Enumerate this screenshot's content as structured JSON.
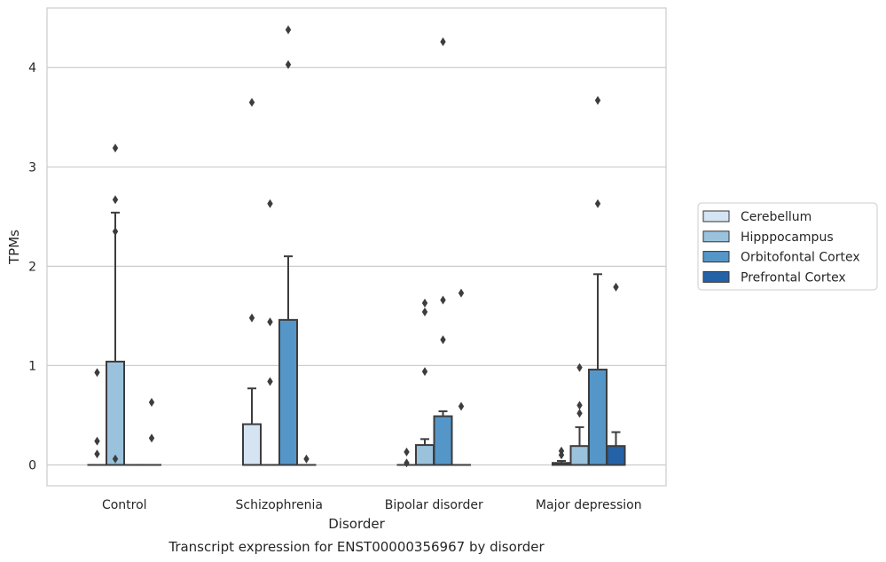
{
  "chart_data": {
    "type": "box",
    "title": "",
    "caption": "Transcript expression for ENST00000356967 by disorder",
    "xlabel": "Disorder",
    "ylabel": "TPMs",
    "ylim": [
      -0.21,
      4.6
    ],
    "yticks": [
      0,
      1,
      2,
      3,
      4
    ],
    "grid": "horizontal",
    "legend_position": "right",
    "categories": [
      "Control",
      "Schizophrenia",
      "Bipolar disorder",
      "Major depression"
    ],
    "series": [
      {
        "name": "Cerebellum",
        "color": "#d4e4f3",
        "boxes": [
          {
            "q1": 0,
            "median": 0,
            "q3": 0,
            "whislo": 0,
            "whishi": 0,
            "fliers": [
              0.93,
              0.24,
              0.11
            ]
          },
          {
            "q1": 0,
            "median": 0,
            "q3": 0.41,
            "whislo": 0,
            "whishi": 0.77,
            "fliers": [
              3.65,
              1.48
            ]
          },
          {
            "q1": 0,
            "median": 0,
            "q3": 0,
            "whislo": 0,
            "whishi": 0,
            "fliers": [
              0.13,
              0.02
            ]
          },
          {
            "q1": 0,
            "median": 0.01,
            "q3": 0.02,
            "whislo": 0,
            "whishi": 0.04,
            "fliers": [
              0.14,
              0.1
            ]
          }
        ]
      },
      {
        "name": "Hipppocampus",
        "color": "#9ac2dd",
        "boxes": [
          {
            "q1": 0,
            "median": 0,
            "q3": 1.04,
            "whislo": 0,
            "whishi": 2.54,
            "fliers": [
              3.19,
              2.67,
              2.35,
              0.06
            ]
          },
          {
            "q1": 0,
            "median": 0,
            "q3": 0,
            "whislo": 0,
            "whishi": 0,
            "fliers": [
              2.63,
              1.44,
              0.84
            ]
          },
          {
            "q1": 0,
            "median": 0,
            "q3": 0.2,
            "whislo": 0,
            "whishi": 0.26,
            "fliers": [
              1.63,
              1.54,
              0.94
            ]
          },
          {
            "q1": 0,
            "median": 0,
            "q3": 0.19,
            "whislo": 0,
            "whishi": 0.38,
            "fliers": [
              0.98,
              0.6,
              0.52
            ]
          }
        ]
      },
      {
        "name": "Orbitofontal Cortex",
        "color": "#5596c8",
        "boxes": [
          {
            "q1": 0,
            "median": 0,
            "q3": 0,
            "whislo": 0,
            "whishi": 0,
            "fliers": []
          },
          {
            "q1": 0,
            "median": 0,
            "q3": 1.46,
            "whislo": 0,
            "whishi": 2.1,
            "fliers": [
              4.38,
              4.03
            ]
          },
          {
            "q1": 0,
            "median": 0,
            "q3": 0.49,
            "whislo": 0,
            "whishi": 0.54,
            "fliers": [
              4.26,
              1.66,
              1.26
            ]
          },
          {
            "q1": 0,
            "median": 0,
            "q3": 0.96,
            "whislo": 0,
            "whishi": 1.92,
            "fliers": [
              3.67,
              2.63
            ]
          }
        ]
      },
      {
        "name": "Prefrontal Cortex",
        "color": "#2462a8",
        "boxes": [
          {
            "q1": 0,
            "median": 0,
            "q3": 0,
            "whislo": 0,
            "whishi": 0,
            "fliers": [
              0.63,
              0.27
            ]
          },
          {
            "q1": 0,
            "median": 0,
            "q3": 0,
            "whislo": 0,
            "whishi": 0,
            "fliers": [
              0.06
            ]
          },
          {
            "q1": 0,
            "median": 0,
            "q3": 0,
            "whislo": 0,
            "whishi": 0,
            "fliers": [
              1.73,
              0.59
            ]
          },
          {
            "q1": 0,
            "median": 0,
            "q3": 0.19,
            "whislo": 0,
            "whishi": 0.33,
            "fliers": [
              1.79
            ]
          }
        ]
      }
    ]
  }
}
